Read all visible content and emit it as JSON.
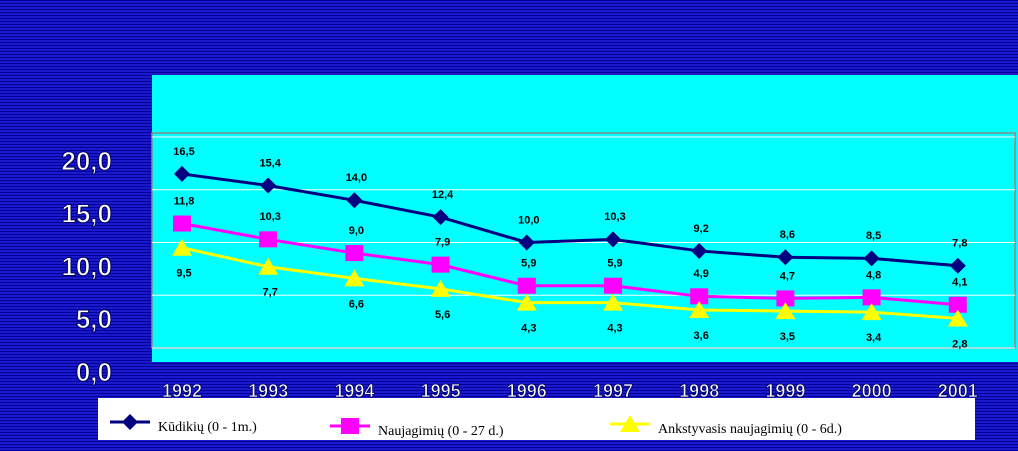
{
  "chart_data": {
    "type": "line",
    "categories": [
      "1992",
      "1993",
      "1994",
      "1995",
      "1996",
      "1997",
      "1998",
      "1999",
      "2000",
      "2001"
    ],
    "series": [
      {
        "name": "Kūdikių (0 - 1m.)",
        "color": "#000080",
        "marker": "diamond",
        "values": [
          16.5,
          15.4,
          14.0,
          12.4,
          10.0,
          10.3,
          9.2,
          8.6,
          8.5,
          7.8
        ],
        "value_labels": [
          "16,5",
          "15,4",
          "14,0",
          "12,4",
          "10,0",
          "10,3",
          "9,2",
          "8,6",
          "8,5",
          "7,8"
        ]
      },
      {
        "name": "Naujagimių (0 - 27 d.)",
        "color": "#ff00ff",
        "marker": "square",
        "values": [
          11.8,
          10.3,
          9.0,
          7.9,
          5.9,
          5.9,
          4.9,
          4.7,
          4.8,
          4.1
        ],
        "value_labels": [
          "11,8",
          "10,3",
          "9,0",
          "7,9",
          "5,9",
          "5,9",
          "4,9",
          "4,7",
          "4,8",
          "4,1"
        ]
      },
      {
        "name": "Ankstyvasis naujagimių (0 - 6d.)",
        "color": "#ffff00",
        "marker": "triangle",
        "values": [
          9.5,
          7.7,
          6.6,
          5.6,
          4.3,
          4.3,
          3.6,
          3.5,
          3.4,
          2.8
        ],
        "value_labels": [
          "9,5",
          "7,7",
          "6,6",
          "5,6",
          "4,3",
          "4,3",
          "3,6",
          "3,5",
          "3,4",
          "2,8"
        ]
      }
    ],
    "ylim": [
      0,
      20
    ],
    "yticks": [
      {
        "value": 0,
        "label": "0,0"
      },
      {
        "value": 5,
        "label": "5,0"
      },
      {
        "value": 10,
        "label": "10,0"
      },
      {
        "value": 15,
        "label": "15,0"
      },
      {
        "value": 20,
        "label": "20,0"
      }
    ],
    "grid": true
  }
}
